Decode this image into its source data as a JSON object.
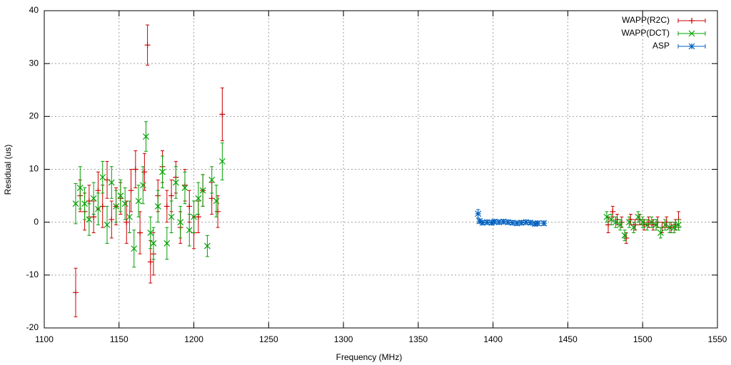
{
  "chart_data": {
    "type": "scatter",
    "x_label": "Frequency (MHz)",
    "y_label": "Residual (us)",
    "xlim": [
      1100,
      1550
    ],
    "xticks": [
      1100,
      1150,
      1200,
      1250,
      1300,
      1350,
      1400,
      1450,
      1500,
      1550
    ],
    "ylim": [
      -20,
      40
    ],
    "yticks": [
      -20,
      -10,
      0,
      10,
      20,
      30,
      40
    ],
    "grid": true,
    "legend": "top-right",
    "series": [
      {
        "name": "WAPP(R2C)",
        "color": "#cc0000",
        "marker": "plus",
        "x": [
          1121,
          1124,
          1127,
          1130,
          1133,
          1136,
          1139,
          1142,
          1145,
          1148,
          1151,
          1155,
          1158,
          1161,
          1164,
          1167,
          1169,
          1171,
          1173,
          1176,
          1179,
          1182,
          1185,
          1188,
          1191,
          1194,
          1197,
          1200,
          1203,
          1206,
          1212,
          1216,
          1219,
          1477,
          1480,
          1483,
          1486,
          1489,
          1492,
          1495,
          1498,
          1501,
          1504,
          1507,
          1510,
          1513,
          1516,
          1519,
          1522,
          1524
        ],
        "values": [
          -13.3,
          5,
          2,
          4,
          1,
          6,
          3,
          8,
          0.5,
          3,
          4.5,
          0,
          6,
          10,
          -2,
          9.5,
          33.5,
          -7.5,
          -6,
          5,
          10.5,
          3,
          5,
          8.5,
          -1,
          7,
          3,
          -2,
          1,
          6,
          4.5,
          2,
          20.4,
          -0.5,
          2,
          0.5,
          0,
          -3,
          0.5,
          -0.5,
          0.5,
          -0.5,
          0,
          -0.5,
          0,
          -1,
          0,
          -1,
          -0.5,
          0.5
        ],
        "errors": [
          4.6,
          3,
          3.5,
          3,
          3,
          3.5,
          4,
          3.5,
          3.5,
          3.5,
          3,
          4,
          4,
          3.5,
          4,
          3.5,
          3.8,
          4,
          4,
          3,
          3,
          3,
          3,
          3,
          3,
          3,
          3,
          3,
          3,
          3,
          3,
          3,
          5,
          1.5,
          1,
          1,
          1,
          1,
          1,
          1,
          1,
          1,
          1,
          1,
          1,
          1,
          1,
          1,
          1,
          1.5
        ]
      },
      {
        "name": "WAPP(DCT)",
        "color": "#00a000",
        "marker": "cross",
        "x": [
          1121,
          1124,
          1127,
          1130,
          1133,
          1136,
          1139,
          1142,
          1145,
          1148,
          1151,
          1154,
          1157,
          1160,
          1163,
          1166,
          1168,
          1171,
          1173,
          1176,
          1179,
          1182,
          1185,
          1188,
          1191,
          1194,
          1197,
          1200,
          1203,
          1206,
          1209,
          1212,
          1215,
          1219,
          1476,
          1479,
          1482,
          1485,
          1488,
          1491,
          1494,
          1497,
          1500,
          1503,
          1506,
          1509,
          1512,
          1515,
          1518,
          1521,
          1524
        ],
        "values": [
          3.5,
          6.5,
          3.5,
          0.5,
          4.5,
          2.5,
          8.5,
          -0.5,
          7.5,
          3,
          5,
          3.5,
          1,
          -5,
          4,
          7,
          16.2,
          -2,
          -4,
          3,
          9.5,
          -4,
          1,
          7.5,
          0,
          6.5,
          -1.5,
          1,
          4.5,
          6,
          -4.5,
          8,
          4,
          11.5,
          1,
          0.5,
          0,
          -0.5,
          -2.5,
          0,
          -1,
          1,
          0,
          -0.5,
          0,
          -0.5,
          -2,
          -0.5,
          -1,
          -1,
          -0.5
        ],
        "errors": [
          3.8,
          4,
          3,
          3,
          3,
          3,
          3,
          3.5,
          3,
          3,
          3,
          3,
          3,
          3.5,
          3,
          3.5,
          2.8,
          3,
          3,
          3,
          3,
          3,
          3,
          3,
          3,
          3,
          3,
          3,
          3,
          3,
          2,
          2.5,
          3,
          3.5,
          1,
          1,
          1,
          1,
          1,
          1,
          1,
          1,
          1,
          1,
          1,
          1,
          1,
          1,
          1,
          1,
          1
        ]
      },
      {
        "name": "ASP",
        "color": "#0060c0",
        "marker": "star",
        "x": [
          1390,
          1391,
          1393,
          1396,
          1399,
          1401,
          1404,
          1407,
          1410,
          1413,
          1416,
          1419,
          1422,
          1425,
          1428,
          1430,
          1434
        ],
        "values": [
          1.6,
          0.2,
          -0.1,
          0,
          -0.1,
          0.1,
          0,
          0.1,
          0,
          -0.1,
          -0.2,
          -0.1,
          0,
          -0.1,
          -0.3,
          -0.2,
          -0.2
        ],
        "errors": [
          0.8,
          0.4,
          0.4,
          0.4,
          0.4,
          0.4,
          0.4,
          0.4,
          0.4,
          0.4,
          0.4,
          0.4,
          0.4,
          0.4,
          0.4,
          0.4,
          0.4
        ]
      }
    ]
  }
}
